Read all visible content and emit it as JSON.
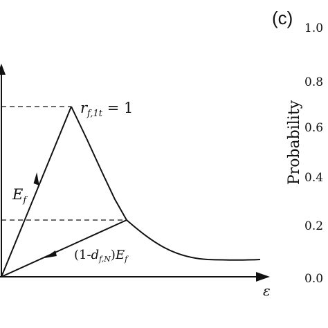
{
  "panel_label": "(c)",
  "diagram": {
    "curve_label_peak": "r",
    "curve_label_peak_sub": "f,1t",
    "curve_label_peak_eq": " = 1",
    "loading_slope_label": "E",
    "loading_slope_sub": "f",
    "unloading_slope_label_prefix": "(1-",
    "unloading_slope_label_d": "d",
    "unloading_slope_label_d_sub": "f,N",
    "unloading_slope_label_suffix": ")",
    "unloading_slope_label_E": "E",
    "unloading_slope_label_E_sub": "f",
    "x_axis_label": "ε"
  },
  "probability_axis": {
    "label": "Probability",
    "ticks": [
      "1.0",
      "0.8",
      "0.6",
      "0.4",
      "0.2",
      "0.0"
    ]
  },
  "colors": {
    "ink": "#111111",
    "background": "#ffffff"
  }
}
